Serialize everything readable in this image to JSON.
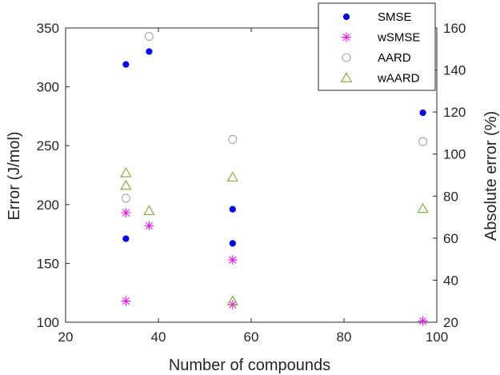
{
  "chart_data": {
    "type": "scatter",
    "xlabel": "Number of compounds",
    "ylabel_left": "Error (J/mol)",
    "ylabel_right": "Absolute error (%)",
    "xlim": [
      20,
      100
    ],
    "ylim_left": [
      100,
      350
    ],
    "ylim_right": [
      20,
      160
    ],
    "xticks": [
      20,
      40,
      60,
      80,
      100
    ],
    "yticks_left": [
      100,
      150,
      200,
      250,
      300,
      350
    ],
    "yticks_right": [
      20,
      40,
      60,
      80,
      100,
      120,
      140,
      160
    ],
    "grid": false,
    "legend_position": "top-right",
    "series": [
      {
        "name": "SMSE",
        "axis": "left",
        "marker": "filled-circle",
        "color": "#0000ff",
        "points": [
          [
            33,
            319
          ],
          [
            38,
            330
          ],
          [
            33,
            171
          ],
          [
            56,
            196
          ],
          [
            56,
            167
          ],
          [
            97,
            278
          ]
        ]
      },
      {
        "name": "wSMSE",
        "axis": "left",
        "marker": "asterisk",
        "color": "#ff00ff",
        "points": [
          [
            33,
            193
          ],
          [
            38,
            182
          ],
          [
            33,
            118
          ],
          [
            56,
            153
          ],
          [
            56,
            115
          ],
          [
            97,
            101
          ]
        ]
      },
      {
        "name": "AARD",
        "axis": "right",
        "marker": "open-circle",
        "color": "#a6a6a6",
        "points": [
          [
            38,
            156
          ],
          [
            33,
            79
          ],
          [
            56,
            107
          ],
          [
            97,
            106
          ]
        ]
      },
      {
        "name": "wAARD",
        "axis": "right",
        "marker": "open-triangle",
        "color": "#77ac30",
        "points": [
          [
            33,
            91
          ],
          [
            33,
            85
          ],
          [
            38,
            73
          ],
          [
            56,
            89
          ],
          [
            56,
            30
          ],
          [
            97,
            74
          ]
        ]
      }
    ]
  }
}
